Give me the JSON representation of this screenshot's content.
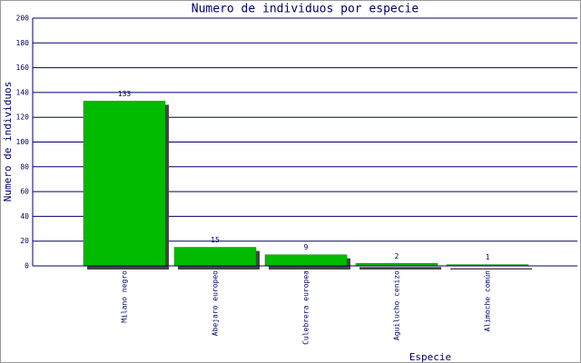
{
  "chart_data": {
    "type": "bar",
    "title": "Numero de individuos por especie",
    "y_label": "Numero de individuos",
    "x_label": "Especie",
    "categories": [
      "Milano negro",
      "Abejaro europeo",
      "Culebrera europea",
      "Aguilucho cenizo",
      "Alimoche común"
    ],
    "values": [
      133,
      15,
      9,
      2,
      1
    ],
    "color": "#00bb00",
    "ylim": [
      0,
      200
    ],
    "yticks": [
      0,
      20,
      40,
      60,
      80,
      100,
      120,
      140,
      160,
      180,
      200
    ],
    "grid": true
  }
}
